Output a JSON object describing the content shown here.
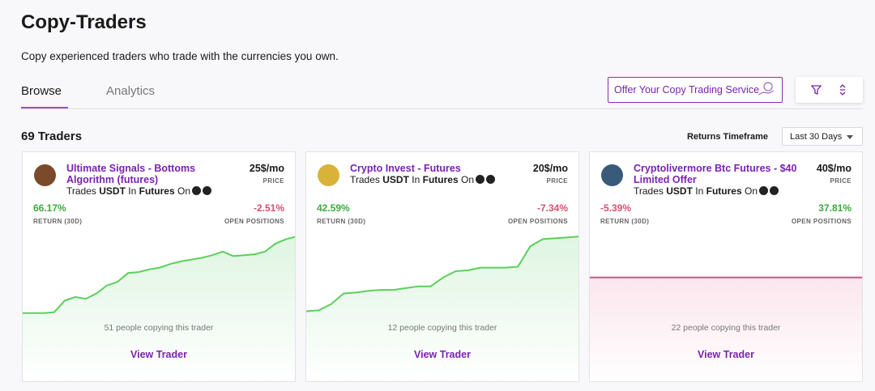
{
  "header": {
    "title": "Copy-Traders",
    "subtitle": "Copy experienced traders who trade with the currencies you own."
  },
  "tabs": [
    "Browse",
    "Analytics"
  ],
  "actions": {
    "offer_button": "Offer Your Copy Trading Service"
  },
  "summary": {
    "count_label": "69 Traders",
    "timeframe_label": "Returns Timeframe",
    "timeframe_value": "Last 30 Days"
  },
  "traders": [
    {
      "name": "Ultimate Signals - Bottoms Algorithm (futures)",
      "trades": "Trades",
      "asset": "USDT",
      "in": "In",
      "market": "Futures",
      "on": "On",
      "price": "25$/mo",
      "price_label": "PRICE",
      "return": "66.17%",
      "return_color": "#3bab3b",
      "return_label": "RETURN (30D)",
      "open_positions": "-2.51%",
      "open_positions_color": "#d9506e",
      "open_positions_label": "OPEN POSITIONS",
      "copiers": "51 people copying this trader",
      "action": "View Trader",
      "avatar_color": "#7a4a2a",
      "chart": {
        "color": "#5ccf5c",
        "fill": "#dff5e2",
        "ylim": [
          0,
          100
        ],
        "values": [
          13,
          13,
          13,
          14,
          27,
          31,
          29,
          35,
          44,
          48,
          58,
          59,
          62,
          64,
          68,
          71,
          73,
          75,
          78,
          82,
          77,
          78,
          79,
          82,
          91,
          96,
          99
        ]
      }
    },
    {
      "name": "Crypto Invest - Futures",
      "trades": "Trades",
      "asset": "USDT",
      "in": "In",
      "market": "Futures",
      "on": "On",
      "price": "20$/mo",
      "price_label": "PRICE",
      "return": "42.59%",
      "return_color": "#3bab3b",
      "return_label": "RETURN (30D)",
      "open_positions": "-7.34%",
      "open_positions_color": "#d9506e",
      "open_positions_label": "OPEN POSITIONS",
      "copiers": "12 people copying this trader",
      "action": "View Trader",
      "avatar_color": "#d9b23a",
      "chart": {
        "color": "#5ccf5c",
        "fill": "#dff5e2",
        "ylim": [
          0,
          100
        ],
        "values": [
          15,
          16,
          23,
          35,
          36,
          38,
          39,
          39,
          41,
          43,
          43,
          53,
          60,
          61,
          64,
          64,
          64,
          65,
          88,
          96,
          97,
          98,
          99
        ]
      }
    },
    {
      "name": "Cryptolivermore Btc Futures - $40 Limited Offer",
      "trades": "Trades",
      "asset": "USDT",
      "in": "In",
      "market": "Futures",
      "on": "On",
      "price": "40$/mo",
      "price_label": "PRICE",
      "return": "-5.39%",
      "return_color": "#d9506e",
      "return_label": "RETURN (30D)",
      "open_positions": "37.81%",
      "open_positions_color": "#3bab3b",
      "open_positions_label": "OPEN POSITIONS",
      "copiers": "22 people copying this trader",
      "action": "View Trader",
      "avatar_color": "#3a5a7a",
      "chart": {
        "color": "#d9507a",
        "fill": "#fbe6ee",
        "ylim": [
          0,
          100
        ],
        "values": [
          53,
          53
        ]
      }
    }
  ]
}
